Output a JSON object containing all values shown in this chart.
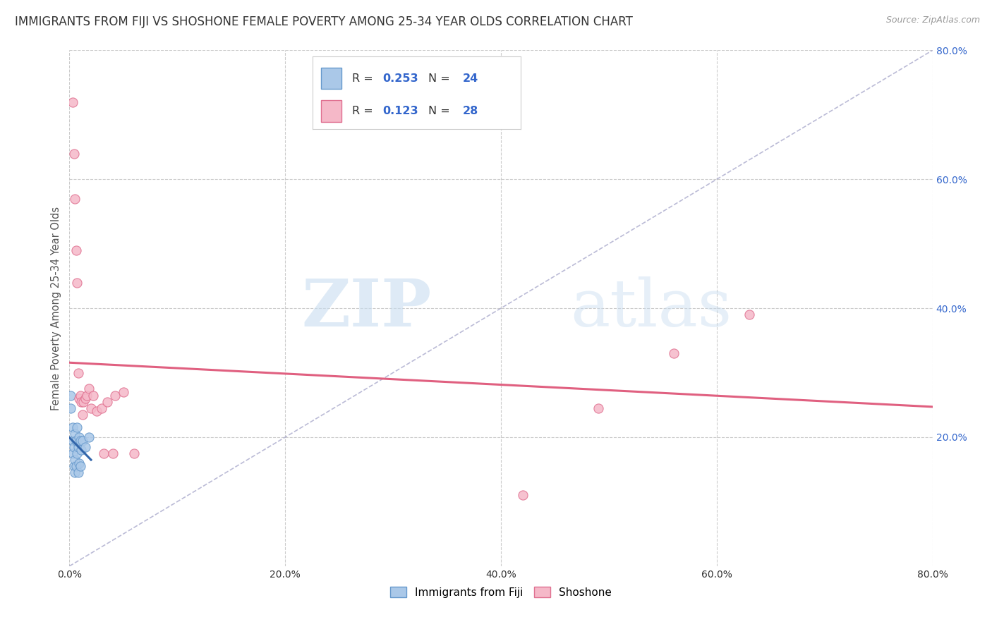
{
  "title": "IMMIGRANTS FROM FIJI VS SHOSHONE FEMALE POVERTY AMONG 25-34 YEAR OLDS CORRELATION CHART",
  "source": "Source: ZipAtlas.com",
  "ylabel": "Female Poverty Among 25-34 Year Olds",
  "xlim": [
    0.0,
    0.8
  ],
  "ylim": [
    0.0,
    0.8
  ],
  "xtick_labels": [
    "0.0%",
    "",
    "20.0%",
    "",
    "40.0%",
    "",
    "60.0%",
    "",
    "80.0%"
  ],
  "xtick_vals": [
    0.0,
    0.1,
    0.2,
    0.3,
    0.4,
    0.5,
    0.6,
    0.7,
    0.8
  ],
  "ytick_labels": [
    "20.0%",
    "40.0%",
    "60.0%",
    "80.0%"
  ],
  "ytick_vals": [
    0.2,
    0.4,
    0.6,
    0.8
  ],
  "fiji_color": "#aac8e8",
  "fiji_edge_color": "#6699cc",
  "shoshone_color": "#f5b8c8",
  "shoshone_edge_color": "#e07090",
  "fiji_R": 0.253,
  "fiji_N": 24,
  "shoshone_R": 0.123,
  "shoshone_N": 28,
  "legend_label_fiji": "Immigrants from Fiji",
  "legend_label_shoshone": "Shoshone",
  "watermark_zip": "ZIP",
  "watermark_atlas": "atlas",
  "fiji_x": [
    0.001,
    0.001,
    0.003,
    0.003,
    0.003,
    0.004,
    0.004,
    0.005,
    0.005,
    0.005,
    0.006,
    0.006,
    0.007,
    0.007,
    0.008,
    0.008,
    0.009,
    0.009,
    0.01,
    0.01,
    0.011,
    0.012,
    0.015,
    0.018
  ],
  "fiji_y": [
    0.245,
    0.265,
    0.175,
    0.195,
    0.215,
    0.155,
    0.185,
    0.145,
    0.165,
    0.205,
    0.155,
    0.195,
    0.175,
    0.215,
    0.145,
    0.185,
    0.16,
    0.2,
    0.155,
    0.195,
    0.18,
    0.195,
    0.185,
    0.2
  ],
  "shoshone_x": [
    0.003,
    0.004,
    0.005,
    0.006,
    0.007,
    0.008,
    0.009,
    0.01,
    0.011,
    0.012,
    0.013,
    0.015,
    0.016,
    0.018,
    0.02,
    0.022,
    0.025,
    0.03,
    0.032,
    0.035,
    0.04,
    0.042,
    0.05,
    0.06,
    0.42,
    0.49,
    0.56,
    0.63
  ],
  "shoshone_y": [
    0.72,
    0.64,
    0.57,
    0.49,
    0.44,
    0.3,
    0.26,
    0.265,
    0.255,
    0.235,
    0.255,
    0.26,
    0.265,
    0.275,
    0.245,
    0.265,
    0.24,
    0.245,
    0.175,
    0.255,
    0.175,
    0.265,
    0.27,
    0.175,
    0.11,
    0.245,
    0.33,
    0.39
  ],
  "title_fontsize": 12,
  "axis_label_fontsize": 10.5,
  "tick_fontsize": 10,
  "marker_size": 90,
  "background_color": "#ffffff",
  "grid_color": "#cccccc",
  "diag_line_color": "#aaaacc",
  "fiji_line_color": "#3366aa",
  "shoshone_line_color": "#e06080",
  "legend_R_color": "#3366cc",
  "legend_N_color": "#3366cc"
}
